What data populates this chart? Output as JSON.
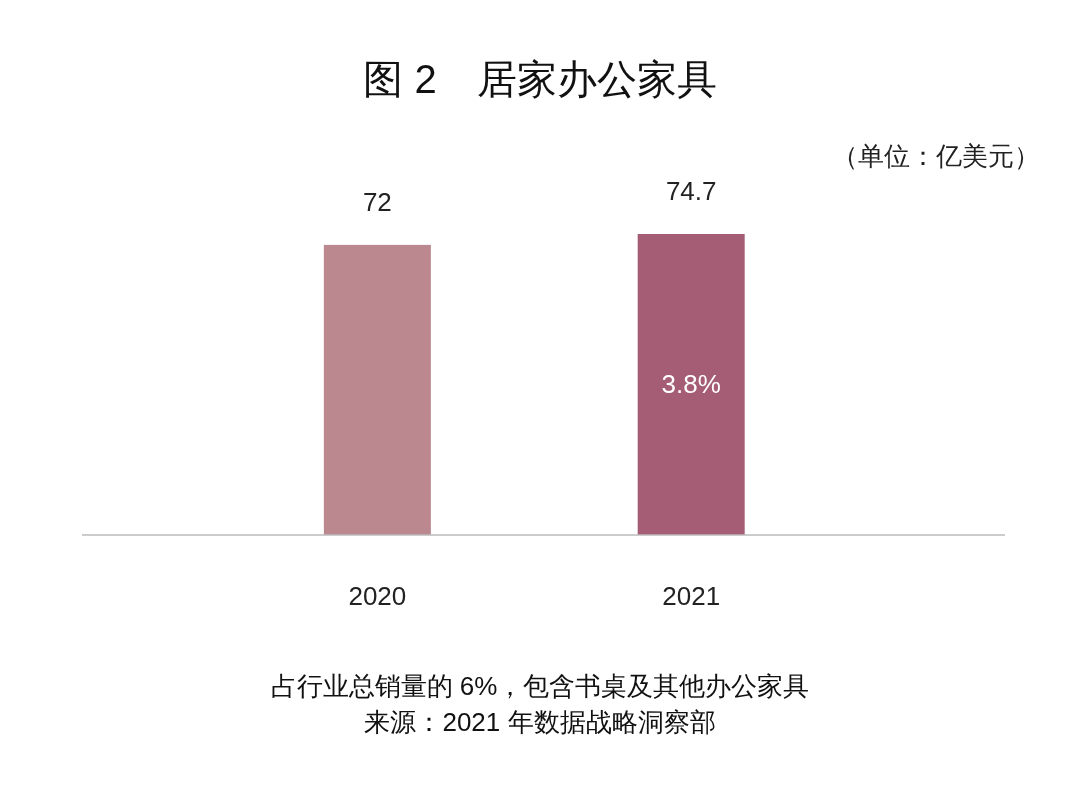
{
  "chart_data": {
    "type": "bar",
    "title": "图 2　居家办公家具",
    "categories": [
      "2020",
      "2021"
    ],
    "colors": [
      "#bb8890",
      "#a45d74"
    ],
    "values": [
      72,
      74.7
    ],
    "data_labels": true,
    "annotations": [
      "（单位：亿美元）",
      "3.8%",
      "占行业总销量的 6%，包含书桌及其他办公家具",
      "来源：2021 年数据战略洞察部"
    ]
  }
}
